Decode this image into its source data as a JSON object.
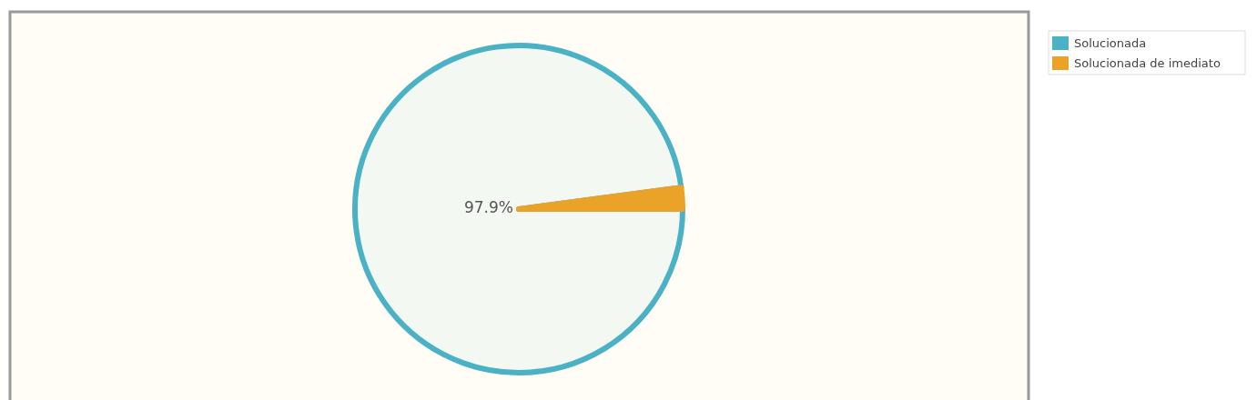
{
  "chart_data": {
    "type": "pie",
    "categories": [
      "Solucionada",
      "Solucionada de imediato"
    ],
    "values": [
      97.9,
      2.1
    ],
    "colors": [
      "#4bb2c5",
      "#eaa228"
    ],
    "value_labels": [
      "97.9%",
      null
    ],
    "legend": "top right"
  }
}
